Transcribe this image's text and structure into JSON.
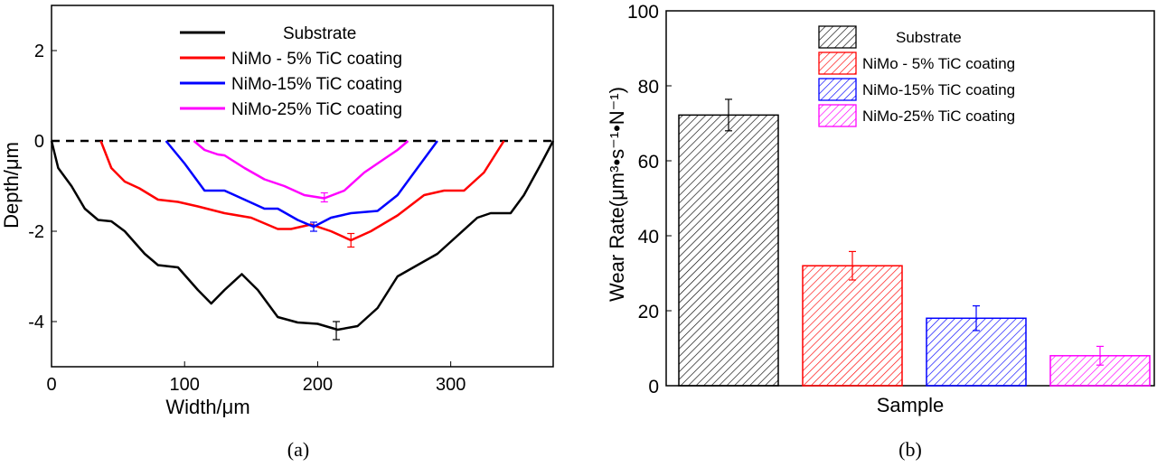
{
  "chart_data": [
    {
      "type": "line",
      "caption": "(a)",
      "xlabel": "Width/μm",
      "ylabel": "Depth/μm",
      "xlim": [
        0,
        377
      ],
      "ylim": [
        -5,
        3
      ],
      "xticks": [
        0,
        100,
        200,
        300
      ],
      "yticks": [
        2,
        0,
        -2,
        -4
      ],
      "legend_position": "top-center",
      "reference_line": {
        "y": 0,
        "style": "dashed",
        "color": "#000000"
      },
      "series": [
        {
          "name": "Substrate",
          "color": "#000000",
          "x": [
            0,
            5,
            15,
            25,
            35,
            45,
            55,
            70,
            80,
            95,
            110,
            120,
            130,
            143,
            155,
            170,
            185,
            200,
            215,
            230,
            245,
            260,
            275,
            290,
            305,
            320,
            330,
            345,
            355,
            368,
            377
          ],
          "y": [
            0,
            -0.6,
            -1.0,
            -1.5,
            -1.75,
            -1.78,
            -2.0,
            -2.5,
            -2.75,
            -2.8,
            -3.3,
            -3.6,
            -3.3,
            -2.95,
            -3.3,
            -3.9,
            -4.02,
            -4.05,
            -4.18,
            -4.1,
            -3.7,
            -3.0,
            -2.75,
            -2.5,
            -2.1,
            -1.7,
            -1.6,
            -1.6,
            -1.2,
            -0.5,
            0
          ],
          "error_bar": {
            "x": 214,
            "y": -4.2,
            "err": 0.2
          }
        },
        {
          "name": "NiMo - 5% TiC coating",
          "color": "#ff0000",
          "x": [
            37,
            45,
            55,
            66,
            80,
            95,
            110,
            130,
            150,
            170,
            180,
            195,
            210,
            225,
            240,
            260,
            280,
            295,
            310,
            325,
            340
          ],
          "y": [
            0,
            -0.6,
            -0.9,
            -1.05,
            -1.3,
            -1.35,
            -1.45,
            -1.6,
            -1.7,
            -1.95,
            -1.95,
            -1.85,
            -2.0,
            -2.2,
            -2.0,
            -1.65,
            -1.2,
            -1.1,
            -1.1,
            -0.7,
            0
          ],
          "error_bar": {
            "x": 225,
            "y": -2.2,
            "err": 0.15
          }
        },
        {
          "name": "NiMo-15% TiC coating",
          "color": "#0000ff",
          "x": [
            86,
            100,
            115,
            130,
            145,
            160,
            170,
            185,
            197,
            210,
            225,
            245,
            260,
            275,
            290
          ],
          "y": [
            0,
            -0.5,
            -1.1,
            -1.1,
            -1.3,
            -1.5,
            -1.5,
            -1.75,
            -1.9,
            -1.7,
            -1.6,
            -1.55,
            -1.2,
            -0.6,
            0
          ],
          "error_bar": {
            "x": 197,
            "y": -1.9,
            "err": 0.1
          }
        },
        {
          "name": "NiMo-25% TiC coating",
          "color": "#ff00ff",
          "x": [
            107,
            115,
            125,
            130,
            145,
            160,
            175,
            190,
            205,
            220,
            235,
            250,
            260,
            268
          ],
          "y": [
            0,
            -0.2,
            -0.3,
            -0.32,
            -0.6,
            -0.85,
            -1.0,
            -1.2,
            -1.27,
            -1.1,
            -0.7,
            -0.4,
            -0.2,
            0
          ],
          "error_bar": {
            "x": 205,
            "y": -1.25,
            "err": 0.1
          }
        }
      ]
    },
    {
      "type": "bar",
      "caption": "(b)",
      "xlabel": "Sample",
      "ylabel": "Wear Rate(μm³•s⁻¹•N⁻¹)",
      "ylim": [
        0,
        100
      ],
      "yticks": [
        0,
        20,
        40,
        60,
        80,
        100
      ],
      "legend_position": "top-center",
      "fill": "hatched",
      "series": [
        {
          "name": "Substrate",
          "color": "#000000",
          "value": 72.2,
          "err": 4.2
        },
        {
          "name": "NiMo - 5% TiC coating",
          "color": "#ff0000",
          "value": 32,
          "err": 3.8
        },
        {
          "name": "NiMo-15% TiC coating",
          "color": "#0000ff",
          "value": 18,
          "err": 3.3
        },
        {
          "name": "NiMo-25% TiC coating",
          "color": "#ff00ff",
          "value": 8,
          "err": 2.5
        }
      ]
    }
  ]
}
